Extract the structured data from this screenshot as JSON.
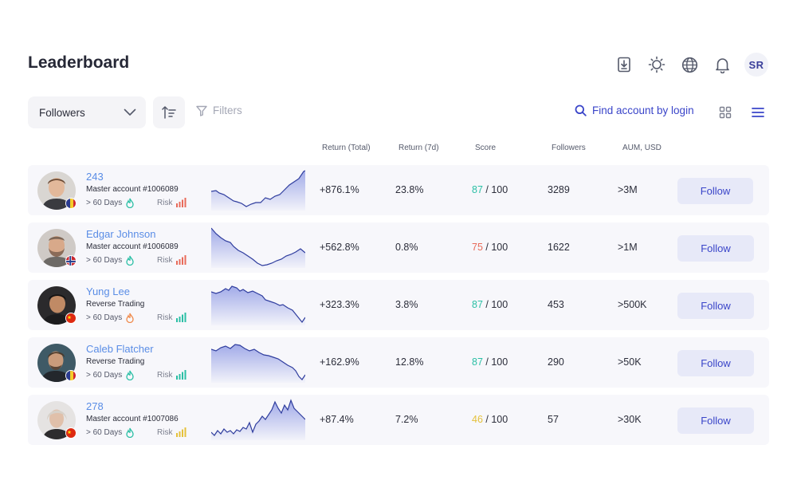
{
  "header": {
    "title": "Leaderboard",
    "avatar_initials": "SR",
    "icons": [
      "download-icon",
      "sun-icon",
      "globe-icon",
      "bell-icon"
    ]
  },
  "toolbar": {
    "sort_select": "Followers",
    "filters_label": "Filters",
    "find_label": "Find account by login"
  },
  "columns": [
    "Return (Total)",
    "Return (7d)",
    "Score",
    "Followers",
    "AUM, USD"
  ],
  "colors": {
    "accent": "#3a45c9",
    "name_link": "#5a8de6",
    "score_high": "#2bbfa5",
    "score_mid": "#e86b5a",
    "score_low": "#e5c13b",
    "row_bg": "#f7f7fb"
  },
  "rows": [
    {
      "name": "243",
      "sub": "Master account #1006089",
      "days": "> 60 Days",
      "days_icon_color": "#2bbfa5",
      "risk_label": "Risk",
      "risk_color": "#e86b5a",
      "flag": "romania",
      "return_total": "+876.1%",
      "return_7d": "23.8%",
      "score": "87",
      "score_max": "/ 100",
      "score_color": "#2bbfa5",
      "followers": "3289",
      "aum": ">3M",
      "follow_label": "Follow"
    },
    {
      "name": "Edgar Johnson",
      "sub": "Master account #1006089",
      "days": "> 60 Days",
      "days_icon_color": "#2bbfa5",
      "risk_label": "Risk",
      "risk_color": "#e86b5a",
      "flag": "norway",
      "return_total": "+562.8%",
      "return_7d": "0.8%",
      "score": "75",
      "score_max": "/ 100",
      "score_color": "#e86b5a",
      "followers": "1622",
      "aum": ">1M",
      "follow_label": "Follow"
    },
    {
      "name": "Yung Lee",
      "sub": "Reverse Trading",
      "days": "> 60 Days",
      "days_icon_color": "#f08a4b",
      "risk_label": "Risk",
      "risk_color": "#2bbfa5",
      "flag": "china",
      "return_total": "+323.3%",
      "return_7d": "3.8%",
      "score": "87",
      "score_max": "/ 100",
      "score_color": "#2bbfa5",
      "followers": "453",
      "aum": ">500K",
      "follow_label": "Follow"
    },
    {
      "name": "Caleb Flatcher",
      "sub": "Reverse Trading",
      "days": "> 60 Days",
      "days_icon_color": "#2bbfa5",
      "risk_label": "Risk",
      "risk_color": "#2bbfa5",
      "flag": "romania",
      "return_total": "+162.9%",
      "return_7d": "12.8%",
      "score": "87",
      "score_max": "/ 100",
      "score_color": "#2bbfa5",
      "followers": "290",
      "aum": ">50K",
      "follow_label": "Follow"
    },
    {
      "name": "278",
      "sub": "Master account #1007086",
      "days": "> 60 Days",
      "days_icon_color": "#2bbfa5",
      "risk_label": "Risk",
      "risk_color": "#e5c13b",
      "flag": "china",
      "return_total": "+87.4%",
      "return_7d": "7.2%",
      "score": "46",
      "score_max": "/ 100",
      "score_color": "#e5c13b",
      "followers": "57",
      "aum": ">30K",
      "follow_label": "Follow"
    }
  ]
}
